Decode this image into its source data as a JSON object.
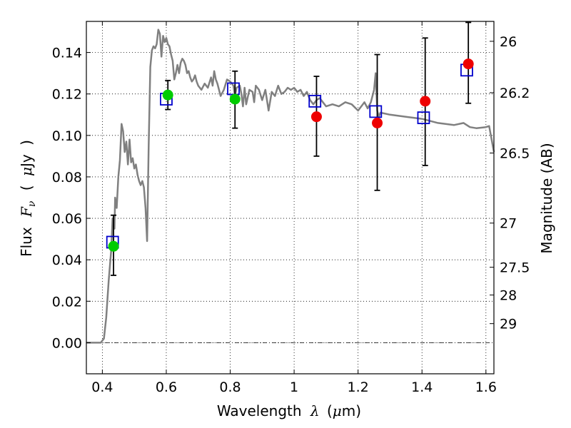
{
  "chart_data": {
    "type": "scatter",
    "xlabel": {
      "prefix": "Wavelength",
      "symbol": "λ",
      "unit_open": "(",
      "unit_mu": "μ",
      "unit_rest": "m)"
    },
    "ylabel": {
      "prefix": "Flux",
      "symbol": "F",
      "symbol_sub": "ν",
      "unit_open": "(",
      "unit_mu": "μ",
      "unit_rest": "Jy",
      "unit_close": ")"
    },
    "y2label": "Magnitude (AB)",
    "xlim": [
      0.35,
      1.625
    ],
    "ylim": [
      -0.015,
      0.155
    ],
    "grid": true,
    "x_ticks": [
      {
        "value": 0.4,
        "label": "0.4"
      },
      {
        "value": 0.6,
        "label": "0.6"
      },
      {
        "value": 0.8,
        "label": "0.8"
      },
      {
        "value": 1.0,
        "label": "1"
      },
      {
        "value": 1.2,
        "label": "1.2"
      },
      {
        "value": 1.4,
        "label": "1.4"
      },
      {
        "value": 1.6,
        "label": "1.6"
      }
    ],
    "y_ticks": [
      {
        "value": 0.0,
        "label": "0.00"
      },
      {
        "value": 0.02,
        "label": "0.02"
      },
      {
        "value": 0.04,
        "label": "0.04"
      },
      {
        "value": 0.06,
        "label": "0.06"
      },
      {
        "value": 0.08,
        "label": "0.08"
      },
      {
        "value": 0.1,
        "label": "0.10"
      },
      {
        "value": 0.12,
        "label": "0.12"
      },
      {
        "value": 0.14,
        "label": "0.14"
      }
    ],
    "mag_ticks": [
      {
        "flux": 0.1454,
        "label": "26"
      },
      {
        "flux": 0.1206,
        "label": "26.2"
      },
      {
        "flux": 0.0915,
        "label": "26.5"
      },
      {
        "flux": 0.0577,
        "label": "27"
      },
      {
        "flux": 0.0364,
        "label": "27.5"
      },
      {
        "flux": 0.023,
        "label": "28"
      },
      {
        "flux": 0.0092,
        "label": "29"
      }
    ],
    "series": [
      {
        "type": "line",
        "color": "#808080",
        "points": [
          [
            0.35,
            0.0
          ],
          [
            0.395,
            0.0
          ],
          [
            0.405,
            0.002
          ],
          [
            0.412,
            0.012
          ],
          [
            0.42,
            0.03
          ],
          [
            0.428,
            0.045
          ],
          [
            0.432,
            0.06
          ],
          [
            0.438,
            0.055
          ],
          [
            0.44,
            0.07
          ],
          [
            0.445,
            0.065
          ],
          [
            0.45,
            0.08
          ],
          [
            0.455,
            0.088
          ],
          [
            0.46,
            0.1055
          ],
          [
            0.465,
            0.102
          ],
          [
            0.47,
            0.092
          ],
          [
            0.475,
            0.097
          ],
          [
            0.48,
            0.086
          ],
          [
            0.485,
            0.098
          ],
          [
            0.49,
            0.087
          ],
          [
            0.495,
            0.089
          ],
          [
            0.5,
            0.084
          ],
          [
            0.505,
            0.086
          ],
          [
            0.51,
            0.081
          ],
          [
            0.515,
            0.078
          ],
          [
            0.52,
            0.076
          ],
          [
            0.525,
            0.078
          ],
          [
            0.53,
            0.075
          ],
          [
            0.535,
            0.065
          ],
          [
            0.54,
            0.049
          ],
          [
            0.545,
            0.095
          ],
          [
            0.55,
            0.133
          ],
          [
            0.555,
            0.141
          ],
          [
            0.56,
            0.143
          ],
          [
            0.565,
            0.142
          ],
          [
            0.57,
            0.144
          ],
          [
            0.575,
            0.151
          ],
          [
            0.58,
            0.149
          ],
          [
            0.585,
            0.138
          ],
          [
            0.59,
            0.148
          ],
          [
            0.595,
            0.145
          ],
          [
            0.6,
            0.147
          ],
          [
            0.605,
            0.144
          ],
          [
            0.61,
            0.143
          ],
          [
            0.615,
            0.139
          ],
          [
            0.62,
            0.136
          ],
          [
            0.625,
            0.127
          ],
          [
            0.63,
            0.13
          ],
          [
            0.635,
            0.134
          ],
          [
            0.64,
            0.13
          ],
          [
            0.645,
            0.135
          ],
          [
            0.65,
            0.137
          ],
          [
            0.655,
            0.136
          ],
          [
            0.66,
            0.134
          ],
          [
            0.665,
            0.13
          ],
          [
            0.67,
            0.131
          ],
          [
            0.675,
            0.128
          ],
          [
            0.68,
            0.126
          ],
          [
            0.685,
            0.127
          ],
          [
            0.69,
            0.129
          ],
          [
            0.695,
            0.126
          ],
          [
            0.7,
            0.124
          ],
          [
            0.71,
            0.122
          ],
          [
            0.72,
            0.125
          ],
          [
            0.73,
            0.123
          ],
          [
            0.74,
            0.128
          ],
          [
            0.745,
            0.124
          ],
          [
            0.75,
            0.131
          ],
          [
            0.755,
            0.127
          ],
          [
            0.76,
            0.125
          ],
          [
            0.77,
            0.119
          ],
          [
            0.78,
            0.122
          ],
          [
            0.79,
            0.127
          ],
          [
            0.8,
            0.126
          ],
          [
            0.81,
            0.124
          ],
          [
            0.815,
            0.119
          ],
          [
            0.82,
            0.123
          ],
          [
            0.83,
            0.124
          ],
          [
            0.835,
            0.12
          ],
          [
            0.84,
            0.114
          ],
          [
            0.845,
            0.123
          ],
          [
            0.85,
            0.115
          ],
          [
            0.86,
            0.122
          ],
          [
            0.87,
            0.121
          ],
          [
            0.875,
            0.116
          ],
          [
            0.88,
            0.124
          ],
          [
            0.89,
            0.122
          ],
          [
            0.9,
            0.117
          ],
          [
            0.91,
            0.122
          ],
          [
            0.92,
            0.112
          ],
          [
            0.93,
            0.121
          ],
          [
            0.94,
            0.119
          ],
          [
            0.95,
            0.124
          ],
          [
            0.96,
            0.12
          ],
          [
            0.97,
            0.121
          ],
          [
            0.98,
            0.123
          ],
          [
            0.99,
            0.122
          ],
          [
            1.0,
            0.123
          ],
          [
            1.01,
            0.121
          ],
          [
            1.02,
            0.122
          ],
          [
            1.03,
            0.119
          ],
          [
            1.04,
            0.121
          ],
          [
            1.05,
            0.117
          ],
          [
            1.06,
            0.115
          ],
          [
            1.07,
            0.117
          ],
          [
            1.08,
            0.118
          ],
          [
            1.09,
            0.116
          ],
          [
            1.1,
            0.114
          ],
          [
            1.12,
            0.115
          ],
          [
            1.14,
            0.114
          ],
          [
            1.16,
            0.116
          ],
          [
            1.18,
            0.115
          ],
          [
            1.2,
            0.112
          ],
          [
            1.22,
            0.116
          ],
          [
            1.23,
            0.113
          ],
          [
            1.24,
            0.116
          ],
          [
            1.25,
            0.122
          ],
          [
            1.255,
            0.13
          ],
          [
            1.26,
            0.112
          ],
          [
            1.265,
            0.109
          ],
          [
            1.27,
            0.111
          ],
          [
            1.3,
            0.11
          ],
          [
            1.35,
            0.109
          ],
          [
            1.4,
            0.108
          ],
          [
            1.45,
            0.106
          ],
          [
            1.5,
            0.105
          ],
          [
            1.53,
            0.106
          ],
          [
            1.55,
            0.104
          ],
          [
            1.57,
            0.1035
          ],
          [
            1.6,
            0.104
          ],
          [
            1.61,
            0.1045
          ],
          [
            1.625,
            0.092
          ]
        ]
      },
      {
        "type": "errorbar",
        "color": "#000000",
        "bars": [
          {
            "x": 0.435,
            "ylow": 0.0325,
            "yhigh": 0.0615
          },
          {
            "x": 0.605,
            "ylow": 0.1125,
            "yhigh": 0.1265
          },
          {
            "x": 0.815,
            "ylow": 0.1035,
            "yhigh": 0.131
          },
          {
            "x": 1.07,
            "ylow": 0.09,
            "yhigh": 0.1285
          },
          {
            "x": 1.26,
            "ylow": 0.0735,
            "yhigh": 0.139
          },
          {
            "x": 1.41,
            "ylow": 0.0855,
            "yhigh": 0.147
          },
          {
            "x": 1.545,
            "ylow": 0.1155,
            "yhigh": 0.1545
          }
        ]
      },
      {
        "type": "scatter",
        "marker": "square",
        "color": "#0000cc",
        "points": [
          [
            0.432,
            0.0485
          ],
          [
            0.6,
            0.1175
          ],
          [
            0.81,
            0.1225
          ],
          [
            1.065,
            0.1165
          ],
          [
            1.255,
            0.1115
          ],
          [
            1.405,
            0.1085
          ],
          [
            1.54,
            0.1315
          ]
        ]
      },
      {
        "type": "scatter",
        "marker": "circle",
        "color": "#00cc00",
        "points": [
          [
            0.435,
            0.0465
          ],
          [
            0.605,
            0.1195
          ],
          [
            0.815,
            0.1175
          ]
        ]
      },
      {
        "type": "scatter",
        "marker": "circle",
        "color": "#ee0000",
        "points": [
          [
            1.07,
            0.109
          ],
          [
            1.26,
            0.106
          ],
          [
            1.41,
            0.1165
          ],
          [
            1.545,
            0.1345
          ]
        ]
      }
    ],
    "zero_line": {
      "value": 0.0,
      "style": "dash-dot"
    }
  }
}
